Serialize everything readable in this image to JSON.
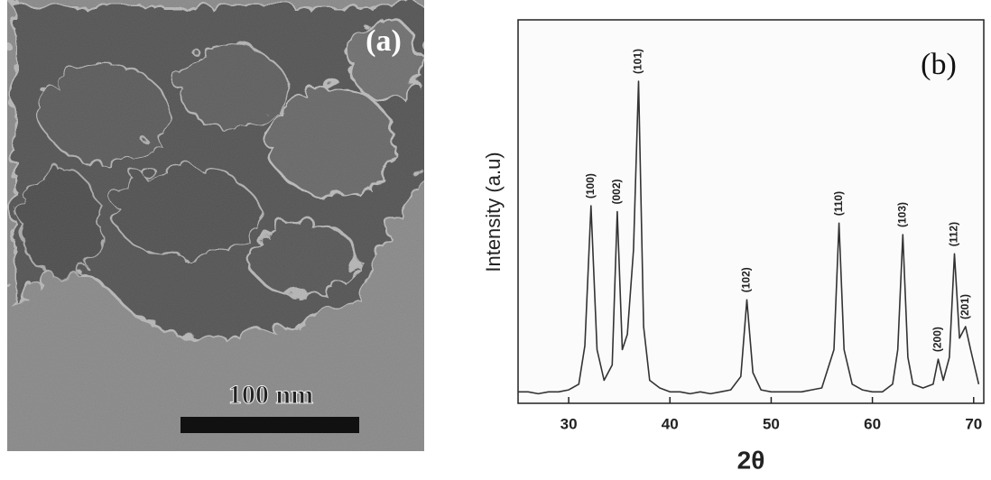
{
  "panel_a": {
    "label": "(a)",
    "scale_bar": "100 nm"
  },
  "chart_data": {
    "type": "line",
    "panel_label": "(b)",
    "xlabel": "2θ",
    "ylabel": "Intensity (a.u)",
    "xlim": [
      25,
      71
    ],
    "ylim": [
      0,
      100
    ],
    "xticks": [
      30,
      40,
      50,
      60,
      70
    ],
    "color": "#333333",
    "x": [
      25,
      26,
      27,
      28,
      29,
      30,
      31,
      31.6,
      32.2,
      32.8,
      33.5,
      34.3,
      34.8,
      35.3,
      35.8,
      36.4,
      36.9,
      37.4,
      38,
      39,
      40,
      41,
      42,
      43,
      44,
      45,
      46,
      47,
      47.6,
      48.2,
      49,
      50,
      51,
      52,
      53,
      54,
      55,
      56.2,
      56.7,
      57.2,
      58,
      59,
      60,
      61,
      62,
      62.5,
      63,
      63.5,
      64,
      65,
      66,
      66.5,
      67,
      67.6,
      68.1,
      68.6,
      69.2,
      69.7,
      70.5
    ],
    "values": [
      3,
      3,
      2.5,
      3,
      3,
      3.5,
      5,
      15,
      51.5,
      14,
      6,
      10,
      50,
      14,
      18,
      40,
      84,
      20,
      6,
      4,
      3,
      3,
      2.5,
      3,
      2.5,
      3,
      3.5,
      7,
      27,
      8,
      3.5,
      3,
      3,
      3,
      3,
      3.5,
      4,
      14,
      47,
      14,
      5,
      3.5,
      3,
      3,
      5,
      14,
      44,
      12,
      5,
      4,
      5,
      11.5,
      6,
      12,
      39,
      17,
      20,
      14,
      5
    ],
    "annotations": [
      {
        "text": "(100)",
        "x": 32.2,
        "y": 51.5
      },
      {
        "text": "(002)",
        "x": 34.8,
        "y": 50
      },
      {
        "text": "(101)",
        "x": 36.9,
        "y": 84
      },
      {
        "text": "(102)",
        "x": 47.6,
        "y": 27
      },
      {
        "text": "(110)",
        "x": 56.7,
        "y": 47
      },
      {
        "text": "(103)",
        "x": 63,
        "y": 44
      },
      {
        "text": "(200)",
        "x": 66.5,
        "y": 11.5
      },
      {
        "text": "(112)",
        "x": 68.1,
        "y": 39
      },
      {
        "text": "(201)",
        "x": 69.2,
        "y": 20
      }
    ]
  }
}
